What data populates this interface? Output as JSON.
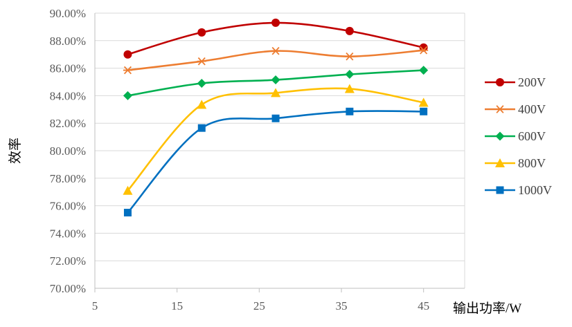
{
  "chart_data": {
    "type": "line",
    "title": "",
    "xlabel": "输出功率/W",
    "ylabel": "效率",
    "xlim": [
      5,
      50
    ],
    "ylim": [
      70,
      90
    ],
    "x_ticks": [
      5,
      15,
      25,
      35,
      45
    ],
    "y_ticks": [
      70,
      72,
      74,
      76,
      78,
      80,
      82,
      84,
      86,
      88,
      90
    ],
    "y_tick_labels": [
      "70.00%",
      "72.00%",
      "74.00%",
      "76.00%",
      "78.00%",
      "80.00%",
      "82.00%",
      "84.00%",
      "86.00%",
      "88.00%",
      "90.00%"
    ],
    "grid": "horizontal",
    "smooth": true,
    "legend_position": "right",
    "x": [
      9,
      18,
      27,
      36,
      45
    ],
    "series": [
      {
        "name": "200V",
        "color": "#C00000",
        "marker": "circle",
        "values": [
          87.0,
          88.6,
          89.3,
          88.7,
          87.5
        ]
      },
      {
        "name": "400V",
        "color": "#ED7D31",
        "marker": "star",
        "values": [
          85.85,
          86.5,
          87.25,
          86.85,
          87.3
        ]
      },
      {
        "name": "600V",
        "color": "#00B050",
        "marker": "diamond",
        "values": [
          84.0,
          84.9,
          85.15,
          85.55,
          85.85
        ]
      },
      {
        "name": "800V",
        "color": "#FFC000",
        "marker": "triangle",
        "values": [
          77.1,
          83.35,
          84.2,
          84.5,
          83.5
        ]
      },
      {
        "name": "1000V",
        "color": "#0070C0",
        "marker": "square",
        "values": [
          75.5,
          81.65,
          82.35,
          82.85,
          82.85
        ]
      }
    ]
  }
}
